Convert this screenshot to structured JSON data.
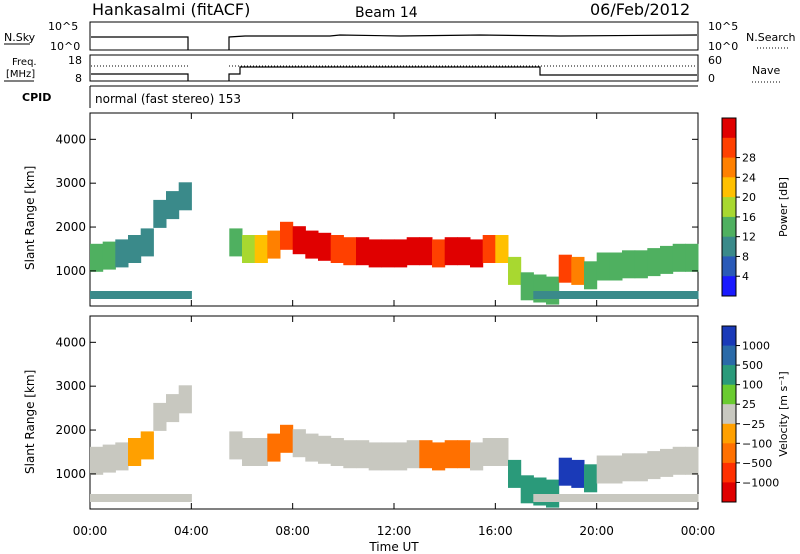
{
  "header": {
    "station": "Hankasalmi (fitACF)",
    "beam": "Beam 14",
    "date": "06/Feb/2012"
  },
  "sky_panel": {
    "left_label": "N.Sky",
    "left_ticks": [
      "10^5",
      "10^0"
    ],
    "right_label": "N.Search",
    "right_ticks": [
      "10^5",
      "10^0"
    ]
  },
  "freq_panel": {
    "left_label_1": "Freq.",
    "left_label_2": "[MHz]",
    "left_ticks": [
      "18",
      "8"
    ],
    "right_label": "Nave",
    "right_ticks": [
      "60",
      "0"
    ]
  },
  "cpid_panel": {
    "label": "CPID",
    "text": "normal (fast stereo) 153"
  },
  "x_axis": {
    "label": "Time UT",
    "ticks": [
      "00:00",
      "04:00",
      "08:00",
      "12:00",
      "16:00",
      "20:00",
      "00:00"
    ]
  },
  "chart_data": [
    {
      "type": "heatmap",
      "title": "",
      "xlabel": "Time UT",
      "ylabel": "Slant Range [km]",
      "xlim": [
        0,
        24
      ],
      "ylim": [
        200,
        4600
      ],
      "yticks": [
        "1000",
        "2000",
        "3000",
        "4000"
      ],
      "colorbar": {
        "label": "Power [dB]",
        "ticks": [
          "4",
          "8",
          "12",
          "16",
          "20",
          "24",
          "28"
        ],
        "colors": [
          "#1a1aff",
          "#2a5ab8",
          "#3a8a8a",
          "#4fb060",
          "#a8d830",
          "#ffc000",
          "#ff8000",
          "#ff4000",
          "#e00000"
        ]
      },
      "x": [
        0,
        0.5,
        1,
        1.5,
        2,
        2.5,
        3,
        3.5,
        5.5,
        6,
        6.5,
        7,
        7.5,
        8,
        8.5,
        9,
        9.5,
        10,
        10.5,
        11,
        11.5,
        12,
        12.5,
        13,
        13.5,
        14,
        14.5,
        15,
        15.5,
        16,
        16.5,
        17,
        17.5,
        18,
        18.5,
        19,
        19.5,
        20,
        20.5,
        21,
        21.5,
        22,
        22.5,
        23,
        23.5
      ],
      "series": [
        {
          "values": [
            10,
            9,
            8,
            8,
            7,
            7,
            7,
            6,
            12,
            14,
            18,
            22,
            26,
            28,
            28,
            27,
            26,
            26,
            27,
            27,
            28,
            28,
            28,
            27,
            26,
            27,
            28,
            27,
            24,
            16,
            14,
            12,
            10,
            10,
            24,
            20,
            12,
            10,
            9,
            9,
            10,
            10,
            10,
            9,
            9
          ]
        },
        {
          "values": [
            1300,
            1350,
            1400,
            1500,
            1650,
            2300,
            2500,
            2700,
            1650,
            1500,
            1500,
            1600,
            1800,
            1700,
            1600,
            1550,
            1500,
            1450,
            1450,
            1400,
            1400,
            1400,
            1450,
            1450,
            1400,
            1450,
            1450,
            1400,
            1500,
            1500,
            1000,
            650,
            600,
            550,
            1050,
            1000,
            900,
            1100,
            1100,
            1150,
            1150,
            1200,
            1250,
            1300,
            1300
          ]
        }
      ]
    },
    {
      "type": "heatmap",
      "title": "",
      "xlabel": "Time UT",
      "ylabel": "Slant Range [km]",
      "xlim": [
        0,
        24
      ],
      "ylim": [
        200,
        4600
      ],
      "yticks": [
        "1000",
        "2000",
        "3000",
        "4000"
      ],
      "colorbar": {
        "label": "Velocity [m s⁻¹]",
        "ticks": [
          "1000",
          "500",
          "100",
          "25",
          "−25",
          "−100",
          "−500",
          "−1000"
        ],
        "colors": [
          "#1a3ab8",
          "#2a6aa8",
          "#2a9a7a",
          "#6acb30",
          "#c8c8c0",
          "#ffa000",
          "#ff7000",
          "#ff3000",
          "#e00000"
        ]
      },
      "x": [
        0,
        0.5,
        1,
        1.5,
        2,
        2.5,
        3,
        3.5,
        5.5,
        6,
        6.5,
        7,
        7.5,
        8,
        8.5,
        9,
        9.5,
        10,
        10.5,
        11,
        11.5,
        12,
        12.5,
        13,
        13.5,
        14,
        14.5,
        15,
        15.5,
        16,
        16.5,
        17,
        17.5,
        18,
        18.5,
        19,
        19.5,
        20,
        20.5,
        21,
        21.5,
        22,
        22.5,
        23,
        23.5
      ],
      "series": [
        {
          "values": [
            0,
            0,
            0,
            -50,
            -80,
            0,
            0,
            0,
            0,
            0,
            0,
            -100,
            -200,
            0,
            0,
            0,
            0,
            0,
            0,
            0,
            0,
            0,
            0,
            -300,
            -400,
            -200,
            -100,
            0,
            0,
            0,
            100,
            200,
            100,
            100,
            800,
            500,
            100,
            0,
            0,
            0,
            0,
            0,
            0,
            0,
            0
          ]
        }
      ]
    }
  ]
}
